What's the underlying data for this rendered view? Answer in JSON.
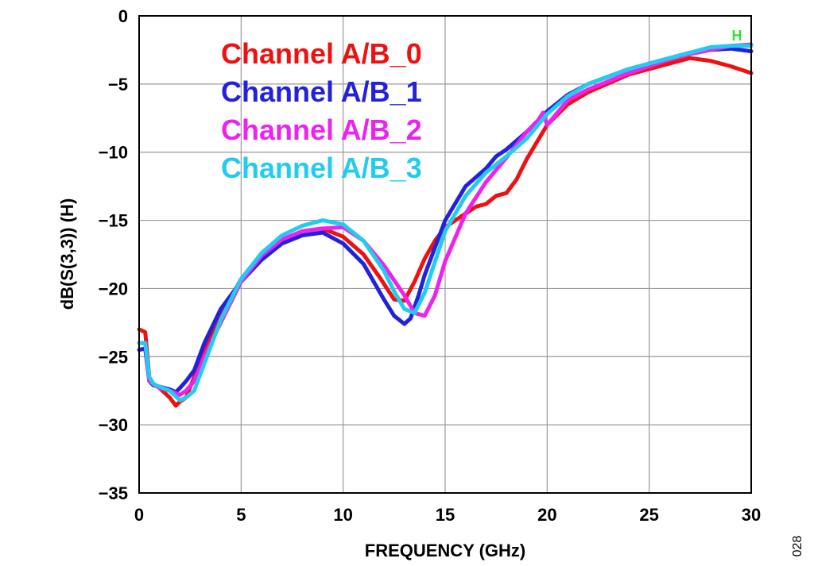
{
  "chart_data": {
    "type": "line",
    "xlabel": "FREQUENCY (GHz)",
    "ylabel": "dB(S(3,3)) (H)",
    "xlim": [
      0,
      30
    ],
    "ylim": [
      -35,
      0
    ],
    "x_ticks": [
      "0",
      "5",
      "10",
      "15",
      "20",
      "25",
      "30"
    ],
    "y_ticks": [
      "0",
      "−5",
      "−10",
      "−15",
      "−20",
      "−25",
      "−30",
      "−35"
    ],
    "grid": true,
    "legend_position": "top-left",
    "marker_label": "H",
    "marker_color": "#33dd33",
    "figure_number": "028",
    "series": [
      {
        "name": "Channel A/B_0",
        "color": "#ee1111",
        "x": [
          0,
          0.3,
          0.5,
          0.7,
          1.0,
          1.5,
          1.8,
          2.0,
          2.3,
          2.7,
          3.2,
          4,
          5,
          6,
          7,
          8,
          9,
          10,
          11,
          11.8,
          12.5,
          13,
          13.5,
          14,
          14.5,
          15,
          16,
          16.5,
          17,
          17.5,
          18,
          18.5,
          19,
          20,
          21,
          22,
          24,
          26,
          27,
          28,
          29,
          30
        ],
        "y": [
          -23,
          -23.2,
          -26.5,
          -27,
          -27.3,
          -28,
          -28.6,
          -28.3,
          -28,
          -26.5,
          -24.5,
          -22,
          -19.3,
          -17.6,
          -16.5,
          -15.8,
          -15.6,
          -16.2,
          -17.5,
          -19.2,
          -20.8,
          -20.9,
          -19.5,
          -17.8,
          -16.5,
          -15.5,
          -14.5,
          -14,
          -13.8,
          -13.2,
          -13,
          -12,
          -10.5,
          -8,
          -6.5,
          -5.6,
          -4.3,
          -3.5,
          -3.1,
          -3.3,
          -3.7,
          -4.2
        ]
      },
      {
        "name": "Channel A/B_1",
        "color": "#2222dd",
        "x": [
          0,
          0.3,
          0.5,
          0.7,
          1.0,
          1.5,
          1.8,
          2.0,
          2.3,
          2.7,
          3.2,
          4,
          5,
          6,
          7,
          8,
          9,
          10,
          11,
          12,
          12.5,
          13,
          13.3,
          13.7,
          14,
          15,
          16,
          17,
          17.5,
          18,
          19,
          20,
          21,
          22,
          24,
          26,
          27,
          28,
          29,
          30
        ],
        "y": [
          -24.5,
          -24.4,
          -26.8,
          -27.1,
          -27.2,
          -27.4,
          -27.6,
          -27.3,
          -26.8,
          -26,
          -24,
          -21.5,
          -19.5,
          -17.9,
          -16.7,
          -16.1,
          -15.9,
          -16.7,
          -18.2,
          -20.8,
          -22,
          -22.6,
          -22.2,
          -20.5,
          -19,
          -15,
          -12.5,
          -11.2,
          -10.3,
          -9.8,
          -8.5,
          -7,
          -5.8,
          -5,
          -3.9,
          -3.1,
          -2.7,
          -2.5,
          -2.4,
          -2.6
        ]
      },
      {
        "name": "Channel A/B_2",
        "color": "#ee22ee",
        "x": [
          0,
          0.3,
          0.5,
          0.7,
          1.0,
          1.5,
          2.0,
          2.3,
          2.7,
          3.2,
          4,
          5,
          6,
          7,
          8,
          9,
          10,
          11,
          12,
          13,
          13.5,
          14,
          14.5,
          15,
          16,
          17,
          18,
          19,
          19.5,
          19.8,
          20,
          21,
          22,
          24,
          26,
          27,
          28,
          29,
          30
        ],
        "y": [
          -24,
          -24,
          -26.8,
          -27,
          -27.3,
          -27.5,
          -27.8,
          -27.5,
          -26.8,
          -25,
          -22.5,
          -19.5,
          -17.6,
          -16.4,
          -15.8,
          -15.6,
          -15.5,
          -16.5,
          -18.3,
          -20.5,
          -21.8,
          -22,
          -20.5,
          -18,
          -14.5,
          -12.2,
          -10.4,
          -8.5,
          -7.8,
          -7.1,
          -8,
          -6.2,
          -5.4,
          -4.2,
          -3.2,
          -2.8,
          -2.5,
          -2.2,
          -2.1
        ]
      },
      {
        "name": "Channel A/B_3",
        "color": "#22ccee",
        "x": [
          0,
          0.3,
          0.5,
          0.7,
          1.0,
          1.5,
          2.0,
          2.3,
          2.7,
          3.2,
          4,
          5,
          6,
          7,
          8,
          9,
          10,
          11,
          12,
          12.5,
          13,
          13.5,
          14,
          15,
          16,
          17,
          18,
          19,
          20,
          21,
          22,
          24,
          26,
          27,
          28,
          29,
          30
        ],
        "y": [
          -24,
          -24,
          -26.5,
          -27,
          -27.2,
          -27.5,
          -28.2,
          -28,
          -27.5,
          -25.5,
          -22.3,
          -19.3,
          -17.4,
          -16.1,
          -15.4,
          -15,
          -15.3,
          -16.5,
          -18.7,
          -20.2,
          -21.5,
          -21.8,
          -20.3,
          -15.8,
          -13.2,
          -11.5,
          -10.3,
          -9,
          -7.2,
          -5.9,
          -5,
          -3.9,
          -3.1,
          -2.7,
          -2.3,
          -2.2,
          -2.2
        ]
      }
    ]
  }
}
